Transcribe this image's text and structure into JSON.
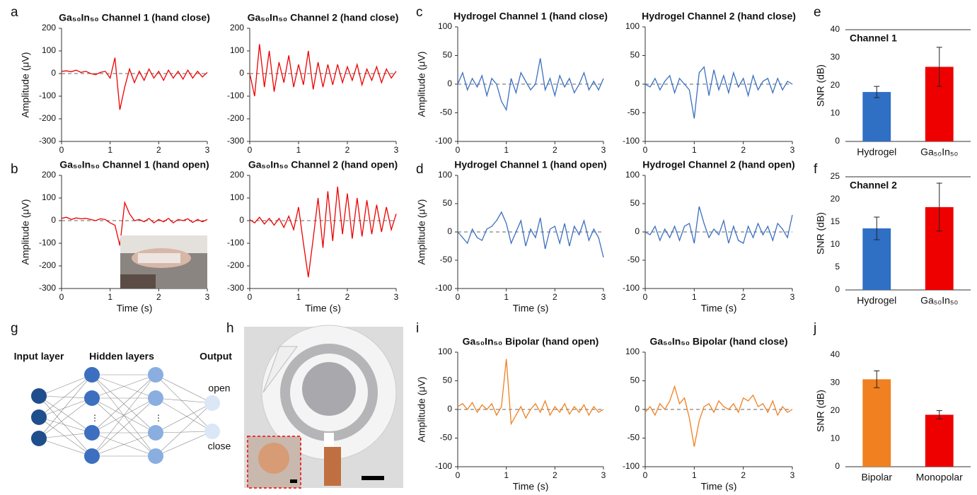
{
  "panel_labels": [
    "a",
    "b",
    "c",
    "d",
    "e",
    "f",
    "g",
    "h",
    "i",
    "j"
  ],
  "network": {
    "input": "Input layer",
    "hidden": "Hidden layers",
    "output": "Output",
    "out1": "open",
    "out2": "close"
  },
  "chart_data": [
    {
      "type": "line",
      "title": "Ga₅₀In₅₀ Channel 1 (hand close)",
      "ylabel": "Amplitude (μV)",
      "color": "#ee0000",
      "zero_line": true,
      "xlim": [
        0,
        3
      ],
      "xticks": [
        0,
        1,
        2,
        3
      ],
      "ylim": [
        -300,
        200
      ],
      "yticks": [
        -300,
        -200,
        -100,
        0,
        100,
        200
      ],
      "x": [
        0,
        0.1,
        0.2,
        0.3,
        0.4,
        0.5,
        0.6,
        0.7,
        0.8,
        0.9,
        1,
        1.1,
        1.2,
        1.3,
        1.4,
        1.5,
        1.6,
        1.7,
        1.8,
        1.9,
        2,
        2.1,
        2.2,
        2.3,
        2.4,
        2.5,
        2.6,
        2.7,
        2.8,
        2.9,
        3
      ],
      "values": [
        10,
        12,
        8,
        15,
        5,
        10,
        0,
        -5,
        5,
        10,
        -20,
        70,
        -160,
        -60,
        20,
        -40,
        10,
        -30,
        20,
        -20,
        10,
        -30,
        15,
        -20,
        10,
        -25,
        15,
        -20,
        10,
        -15,
        5
      ]
    },
    {
      "type": "line",
      "title": "Ga₅₀In₅₀ Channel 2 (hand close)",
      "color": "#ee0000",
      "zero_line": true,
      "xlim": [
        0,
        3
      ],
      "xticks": [
        0,
        1,
        2,
        3
      ],
      "ylim": [
        -300,
        200
      ],
      "yticks": [
        -300,
        -200,
        -100,
        0,
        100,
        200
      ],
      "x": [
        0,
        0.1,
        0.2,
        0.3,
        0.4,
        0.5,
        0.6,
        0.7,
        0.8,
        0.9,
        1,
        1.1,
        1.2,
        1.3,
        1.4,
        1.5,
        1.6,
        1.7,
        1.8,
        1.9,
        2,
        2.1,
        2.2,
        2.3,
        2.4,
        2.5,
        2.6,
        2.7,
        2.8,
        2.9,
        3
      ],
      "values": [
        0,
        -100,
        130,
        -60,
        100,
        -80,
        50,
        -40,
        80,
        -60,
        40,
        -50,
        100,
        -70,
        50,
        -60,
        40,
        -50,
        40,
        -40,
        30,
        -30,
        40,
        -50,
        20,
        -30,
        30,
        -40,
        20,
        -20,
        10
      ]
    },
    {
      "type": "line",
      "title": "Ga₅₀In₅₀ Channel 1 (hand open)",
      "ylabel": "Amplitude (μV)",
      "xlabel": "Time (s)",
      "color": "#ee0000",
      "zero_line": true,
      "xlim": [
        0,
        3
      ],
      "xticks": [
        0,
        1,
        2,
        3
      ],
      "ylim": [
        -300,
        200
      ],
      "yticks": [
        -300,
        -200,
        -100,
        0,
        100,
        200
      ],
      "x": [
        0,
        0.1,
        0.2,
        0.3,
        0.4,
        0.5,
        0.6,
        0.7,
        0.8,
        0.9,
        1,
        1.1,
        1.2,
        1.3,
        1.4,
        1.5,
        1.6,
        1.7,
        1.8,
        1.9,
        2,
        2.1,
        2.2,
        2.3,
        2.4,
        2.5,
        2.6,
        2.7,
        2.8,
        2.9,
        3
      ],
      "values": [
        10,
        15,
        5,
        12,
        8,
        10,
        5,
        0,
        8,
        5,
        -10,
        -20,
        -110,
        80,
        30,
        0,
        5,
        -5,
        10,
        -10,
        5,
        -5,
        10,
        -10,
        5,
        0,
        8,
        -8,
        5,
        -5,
        5
      ]
    },
    {
      "type": "line",
      "title": "Ga₅₀In₅₀ Channel 2 (hand open)",
      "xlabel": "Time (s)",
      "color": "#ee0000",
      "zero_line": true,
      "xlim": [
        0,
        3
      ],
      "xticks": [
        0,
        1,
        2,
        3
      ],
      "ylim": [
        -300,
        200
      ],
      "yticks": [
        -300,
        -200,
        -100,
        0,
        100,
        200
      ],
      "x": [
        0,
        0.1,
        0.2,
        0.3,
        0.4,
        0.5,
        0.6,
        0.7,
        0.8,
        0.9,
        1,
        1.1,
        1.2,
        1.3,
        1.4,
        1.5,
        1.6,
        1.7,
        1.8,
        1.9,
        2,
        2.1,
        2.2,
        2.3,
        2.4,
        2.5,
        2.6,
        2.7,
        2.8,
        2.9,
        3
      ],
      "values": [
        5,
        -10,
        15,
        -15,
        10,
        -20,
        10,
        -30,
        20,
        -40,
        60,
        -100,
        -250,
        -80,
        100,
        -120,
        130,
        -90,
        150,
        -60,
        120,
        -80,
        100,
        -70,
        90,
        -60,
        70,
        -50,
        60,
        -40,
        30
      ]
    },
    {
      "type": "line",
      "title": "Hydrogel Channel 1 (hand close)",
      "ylabel": "Amplitude (μV)",
      "color": "#3a6fbf",
      "zero_line": true,
      "xlim": [
        0,
        3
      ],
      "xticks": [
        0,
        1,
        2,
        3
      ],
      "ylim": [
        -100,
        100
      ],
      "yticks": [
        -100,
        -50,
        0,
        50,
        100
      ],
      "x": [
        0,
        0.1,
        0.2,
        0.3,
        0.4,
        0.5,
        0.6,
        0.7,
        0.8,
        0.9,
        1,
        1.1,
        1.2,
        1.3,
        1.4,
        1.5,
        1.6,
        1.7,
        1.8,
        1.9,
        2,
        2.1,
        2.2,
        2.3,
        2.4,
        2.5,
        2.6,
        2.7,
        2.8,
        2.9,
        3
      ],
      "values": [
        0,
        20,
        -10,
        10,
        -5,
        15,
        -20,
        10,
        0,
        -30,
        -45,
        10,
        -15,
        20,
        5,
        -10,
        0,
        45,
        -10,
        10,
        -20,
        15,
        -5,
        10,
        -15,
        0,
        20,
        -10,
        5,
        -10,
        10
      ]
    },
    {
      "type": "line",
      "title": "Hydrogel Channel 2 (hand close)",
      "color": "#3a6fbf",
      "zero_line": true,
      "xlim": [
        0,
        3
      ],
      "xticks": [
        0,
        1,
        2,
        3
      ],
      "ylim": [
        -100,
        100
      ],
      "yticks": [
        -100,
        -50,
        0,
        50,
        100
      ],
      "x": [
        0,
        0.1,
        0.2,
        0.3,
        0.4,
        0.5,
        0.6,
        0.7,
        0.8,
        0.9,
        1,
        1.1,
        1.2,
        1.3,
        1.4,
        1.5,
        1.6,
        1.7,
        1.8,
        1.9,
        2,
        2.1,
        2.2,
        2.3,
        2.4,
        2.5,
        2.6,
        2.7,
        2.8,
        2.9,
        3
      ],
      "values": [
        0,
        -5,
        10,
        -10,
        5,
        15,
        -15,
        10,
        0,
        -10,
        -60,
        20,
        30,
        -20,
        25,
        -10,
        15,
        -15,
        20,
        -5,
        10,
        -20,
        15,
        -10,
        5,
        10,
        -15,
        10,
        -10,
        5,
        0
      ]
    },
    {
      "type": "line",
      "title": "Hydrogel Channel 1 (hand open)",
      "ylabel": "Amplitude (μV)",
      "xlabel": "Time (s)",
      "color": "#3a6fbf",
      "zero_line": true,
      "xlim": [
        0,
        3
      ],
      "xticks": [
        0,
        1,
        2,
        3
      ],
      "ylim": [
        -100,
        100
      ],
      "yticks": [
        -100,
        -50,
        0,
        50,
        100
      ],
      "x": [
        0,
        0.1,
        0.2,
        0.3,
        0.4,
        0.5,
        0.6,
        0.7,
        0.8,
        0.9,
        1,
        1.1,
        1.2,
        1.3,
        1.4,
        1.5,
        1.6,
        1.7,
        1.8,
        1.9,
        2,
        2.1,
        2.2,
        2.3,
        2.4,
        2.5,
        2.6,
        2.7,
        2.8,
        2.9,
        3
      ],
      "values": [
        0,
        -10,
        -20,
        5,
        -10,
        -15,
        5,
        10,
        20,
        35,
        15,
        -20,
        0,
        20,
        -25,
        5,
        -10,
        25,
        -30,
        5,
        10,
        -20,
        15,
        -25,
        10,
        -5,
        20,
        -15,
        5,
        -10,
        -45
      ]
    },
    {
      "type": "line",
      "title": "Hydrogel Channel 2 (hand open)",
      "xlabel": "Time (s)",
      "color": "#3a6fbf",
      "zero_line": true,
      "xlim": [
        0,
        3
      ],
      "xticks": [
        0,
        1,
        2,
        3
      ],
      "ylim": [
        -100,
        100
      ],
      "yticks": [
        -100,
        -50,
        0,
        50,
        100
      ],
      "x": [
        0,
        0.1,
        0.2,
        0.3,
        0.4,
        0.5,
        0.6,
        0.7,
        0.8,
        0.9,
        1,
        1.1,
        1.2,
        1.3,
        1.4,
        1.5,
        1.6,
        1.7,
        1.8,
        1.9,
        2,
        2.1,
        2.2,
        2.3,
        2.4,
        2.5,
        2.6,
        2.7,
        2.8,
        2.9,
        3
      ],
      "values": [
        0,
        -5,
        10,
        -15,
        5,
        -10,
        10,
        -15,
        10,
        15,
        -20,
        45,
        15,
        -10,
        5,
        -5,
        20,
        -20,
        10,
        -15,
        -20,
        10,
        -10,
        15,
        -5,
        10,
        -15,
        15,
        5,
        -10,
        30
      ]
    },
    {
      "type": "bar",
      "title": "Channel 1",
      "ylabel": "SNR (dB)",
      "frame": true,
      "categories": [
        "Hydrogel",
        "Ga₅₀In₅₀"
      ],
      "values": [
        17.7,
        26.7
      ],
      "errors": [
        2,
        7
      ],
      "colors": [
        "#2f6fc4",
        "#ee0000"
      ],
      "ylim": [
        0,
        40
      ],
      "yticks": [
        0,
        10,
        20,
        30,
        40
      ]
    },
    {
      "type": "bar",
      "title": "Channel 2",
      "ylabel": "SNR (dB)",
      "frame": true,
      "categories": [
        "Hydrogel",
        "Ga₅₀In₅₀"
      ],
      "values": [
        13.6,
        18.3
      ],
      "errors": [
        2.5,
        5.3
      ],
      "colors": [
        "#2f6fc4",
        "#ee0000"
      ],
      "ylim": [
        0,
        25
      ],
      "yticks": [
        0,
        5,
        10,
        15,
        20,
        25
      ]
    },
    {
      "type": "line",
      "title": "Ga₅₀In₅₀ Bipolar (hand open)",
      "ylabel": "Amplitude (μV)",
      "xlabel": "Time (s)",
      "color": "#f08020",
      "zero_line": true,
      "xlim": [
        0,
        3
      ],
      "xticks": [
        0,
        1,
        2,
        3
      ],
      "ylim": [
        -100,
        100
      ],
      "yticks": [
        -100,
        -50,
        0,
        50,
        100
      ],
      "x": [
        0,
        0.1,
        0.2,
        0.3,
        0.4,
        0.5,
        0.6,
        0.7,
        0.8,
        0.9,
        1,
        1.1,
        1.2,
        1.3,
        1.4,
        1.5,
        1.6,
        1.7,
        1.8,
        1.9,
        2,
        2.1,
        2.2,
        2.3,
        2.4,
        2.5,
        2.6,
        2.7,
        2.8,
        2.9,
        3
      ],
      "values": [
        5,
        10,
        0,
        12,
        -5,
        8,
        0,
        10,
        -10,
        5,
        88,
        -25,
        -10,
        5,
        -15,
        0,
        10,
        -5,
        15,
        -10,
        5,
        -5,
        10,
        -8,
        5,
        -5,
        8,
        -10,
        5,
        -5,
        0
      ]
    },
    {
      "type": "line",
      "title": "Ga₅₀In₅₀ Bipolar (hand close)",
      "xlabel": "Time (s)",
      "color": "#f08020",
      "zero_line": true,
      "xlim": [
        0,
        3
      ],
      "xticks": [
        0,
        1,
        2,
        3
      ],
      "ylim": [
        -100,
        100
      ],
      "yticks": [
        -100,
        -50,
        0,
        50,
        100
      ],
      "x": [
        0,
        0.1,
        0.2,
        0.3,
        0.4,
        0.5,
        0.6,
        0.7,
        0.8,
        0.9,
        1,
        1.1,
        1.2,
        1.3,
        1.4,
        1.5,
        1.6,
        1.7,
        1.8,
        1.9,
        2,
        2.1,
        2.2,
        2.3,
        2.4,
        2.5,
        2.6,
        2.7,
        2.8,
        2.9,
        3
      ],
      "values": [
        -5,
        5,
        -10,
        10,
        0,
        15,
        40,
        10,
        20,
        -15,
        -65,
        -20,
        5,
        10,
        -5,
        15,
        5,
        0,
        10,
        -5,
        20,
        15,
        25,
        5,
        10,
        -5,
        15,
        -10,
        5,
        -5,
        0
      ]
    },
    {
      "type": "bar",
      "ylabel": "SNR (dB)",
      "frame": false,
      "categories": [
        "Bipolar",
        "Monopolar"
      ],
      "values": [
        31.3,
        18.6
      ],
      "errors": [
        3,
        1.5
      ],
      "colors": [
        "#f08020",
        "#ee0000"
      ],
      "ylim": [
        0,
        40
      ],
      "yticks": [
        0,
        10,
        20,
        30,
        40
      ]
    }
  ]
}
